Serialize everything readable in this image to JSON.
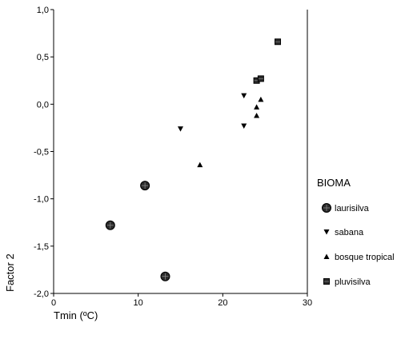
{
  "chart_data": {
    "type": "scatter",
    "title": "",
    "xlabel": "Tmin (ºC)",
    "ylabel": "Factor 2",
    "xlim": [
      0,
      30
    ],
    "ylim": [
      -2.0,
      1.0
    ],
    "x_ticks": [
      0,
      10,
      20,
      30
    ],
    "x_tick_labels": [
      "0",
      "10",
      "20",
      "30"
    ],
    "y_ticks": [
      1.0,
      0.5,
      0.0,
      -0.5,
      -1.0,
      -1.5,
      -2.0
    ],
    "y_tick_labels": [
      "1,0",
      "0,5",
      "0,0",
      "-0,5",
      "-1,0",
      "-1,5",
      "-2,0"
    ],
    "grid": false,
    "legend_title": "BIOMA",
    "legend_placement": "right",
    "series": [
      {
        "name": "laurisilva",
        "marker": "circle",
        "points": [
          [
            6.7,
            -1.28
          ],
          [
            10.8,
            -0.86
          ],
          [
            13.2,
            -1.82
          ]
        ]
      },
      {
        "name": "sabana",
        "marker": "triangle-down",
        "points": [
          [
            15.0,
            -0.26
          ],
          [
            22.5,
            0.09
          ],
          [
            22.5,
            -0.23
          ]
        ]
      },
      {
        "name": "bosque tropical",
        "marker": "triangle-up",
        "points": [
          [
            17.3,
            -0.64
          ],
          [
            24.0,
            -0.03
          ],
          [
            24.0,
            -0.12
          ],
          [
            24.5,
            0.05
          ]
        ]
      },
      {
        "name": "pluvisilva",
        "marker": "square",
        "points": [
          [
            24.0,
            0.25
          ],
          [
            24.5,
            0.27
          ],
          [
            26.5,
            0.66
          ]
        ]
      }
    ]
  }
}
